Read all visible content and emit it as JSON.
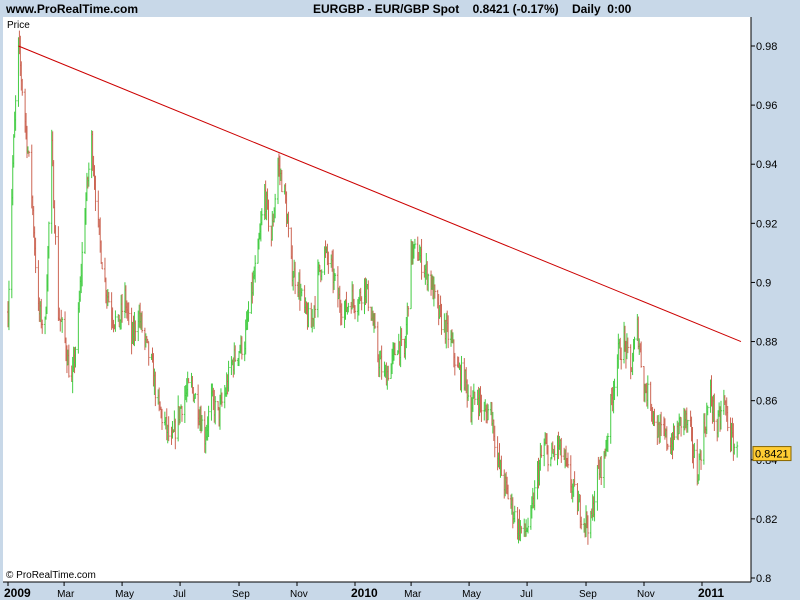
{
  "header": {
    "site": "www.ProRealTime.com",
    "title": "EURGBP - EUR/GBP Spot    0.8421 (-0.17%)    Daily  0:00"
  },
  "panel_label": "Price",
  "copyright": "© ProRealTime.com",
  "colors": {
    "background": "#c8d8e8",
    "plot": "#ffffff",
    "up": "#44cc44",
    "down": "#cc6655",
    "trendline": "#cc0000",
    "last_price_box": "#ffcc33"
  },
  "chart_data": {
    "type": "ohlc-bars",
    "symbol": "EURGBP",
    "timeframe": "Daily",
    "last_value": "0.8421",
    "ylim": [
      0.8,
      0.99
    ],
    "y_ticks": [
      "0.98",
      "0.96",
      "0.94",
      "0.92",
      "0.9",
      "0.88",
      "0.86",
      "0.84",
      "0.82",
      "0.8"
    ],
    "x_ticks": [
      "2009",
      "Mar",
      "May",
      "Jul",
      "Sep",
      "Nov",
      "2010",
      "Mar",
      "May",
      "Jul",
      "Sep",
      "Nov",
      "2011"
    ],
    "x_year_ticks": [
      "2009",
      "2010",
      "2011"
    ],
    "price_path": [
      [
        "2009-01-01",
        0.89
      ],
      [
        "2009-01-06",
        0.94
      ],
      [
        "2009-01-12",
        0.98
      ],
      [
        "2009-01-19",
        0.955
      ],
      [
        "2009-01-26",
        0.93
      ],
      [
        "2009-02-02",
        0.89
      ],
      [
        "2009-02-09",
        0.885
      ],
      [
        "2009-02-16",
        0.945
      ],
      [
        "2009-02-23",
        0.89
      ],
      [
        "2009-03-02",
        0.88
      ],
      [
        "2009-03-09",
        0.865
      ],
      [
        "2009-03-16",
        0.888
      ],
      [
        "2009-03-23",
        0.925
      ],
      [
        "2009-03-30",
        0.948
      ],
      [
        "2009-04-06",
        0.918
      ],
      [
        "2009-04-13",
        0.9
      ],
      [
        "2009-04-20",
        0.89
      ],
      [
        "2009-04-27",
        0.885
      ],
      [
        "2009-05-04",
        0.895
      ],
      [
        "2009-05-11",
        0.88
      ],
      [
        "2009-05-18",
        0.89
      ],
      [
        "2009-05-25",
        0.88
      ],
      [
        "2009-06-01",
        0.872
      ],
      [
        "2009-06-08",
        0.858
      ],
      [
        "2009-06-15",
        0.852
      ],
      [
        "2009-06-22",
        0.845
      ],
      [
        "2009-06-29",
        0.855
      ],
      [
        "2009-07-06",
        0.862
      ],
      [
        "2009-07-13",
        0.865
      ],
      [
        "2009-07-20",
        0.858
      ],
      [
        "2009-07-27",
        0.848
      ],
      [
        "2009-08-03",
        0.86
      ],
      [
        "2009-08-10",
        0.855
      ],
      [
        "2009-08-17",
        0.862
      ],
      [
        "2009-08-24",
        0.872
      ],
      [
        "2009-08-31",
        0.877
      ],
      [
        "2009-09-07",
        0.88
      ],
      [
        "2009-09-14",
        0.896
      ],
      [
        "2009-09-21",
        0.91
      ],
      [
        "2009-09-28",
        0.93
      ],
      [
        "2009-10-05",
        0.915
      ],
      [
        "2009-10-12",
        0.94
      ],
      [
        "2009-10-19",
        0.93
      ],
      [
        "2009-10-26",
        0.905
      ],
      [
        "2009-11-02",
        0.9
      ],
      [
        "2009-11-09",
        0.89
      ],
      [
        "2009-11-16",
        0.885
      ],
      [
        "2009-11-23",
        0.902
      ],
      [
        "2009-11-30",
        0.91
      ],
      [
        "2009-12-07",
        0.905
      ],
      [
        "2009-12-14",
        0.895
      ],
      [
        "2009-12-21",
        0.89
      ],
      [
        "2009-12-28",
        0.895
      ],
      [
        "2010-01-04",
        0.893
      ],
      [
        "2010-01-11",
        0.9
      ],
      [
        "2010-01-18",
        0.89
      ],
      [
        "2010-01-25",
        0.875
      ],
      [
        "2010-02-01",
        0.868
      ],
      [
        "2010-02-08",
        0.872
      ],
      [
        "2010-02-15",
        0.88
      ],
      [
        "2010-02-22",
        0.875
      ],
      [
        "2010-03-01",
        0.91
      ],
      [
        "2010-03-08",
        0.91
      ],
      [
        "2010-03-15",
        0.905
      ],
      [
        "2010-03-22",
        0.9
      ],
      [
        "2010-03-29",
        0.89
      ],
      [
        "2010-04-05",
        0.885
      ],
      [
        "2010-04-12",
        0.88
      ],
      [
        "2010-04-19",
        0.87
      ],
      [
        "2010-04-26",
        0.868
      ],
      [
        "2010-05-03",
        0.858
      ],
      [
        "2010-05-10",
        0.862
      ],
      [
        "2010-05-17",
        0.855
      ],
      [
        "2010-05-24",
        0.858
      ],
      [
        "2010-05-31",
        0.84
      ],
      [
        "2010-06-07",
        0.832
      ],
      [
        "2010-06-14",
        0.825
      ],
      [
        "2010-06-21",
        0.818
      ],
      [
        "2010-06-28",
        0.815
      ],
      [
        "2010-07-05",
        0.82
      ],
      [
        "2010-07-12",
        0.835
      ],
      [
        "2010-07-19",
        0.845
      ],
      [
        "2010-07-26",
        0.84
      ],
      [
        "2010-08-02",
        0.845
      ],
      [
        "2010-08-09",
        0.84
      ],
      [
        "2010-08-16",
        0.832
      ],
      [
        "2010-08-23",
        0.825
      ],
      [
        "2010-08-30",
        0.82
      ],
      [
        "2010-09-06",
        0.818
      ],
      [
        "2010-09-13",
        0.835
      ],
      [
        "2010-09-20",
        0.84
      ],
      [
        "2010-09-27",
        0.858
      ],
      [
        "2010-10-04",
        0.875
      ],
      [
        "2010-10-11",
        0.88
      ],
      [
        "2010-10-18",
        0.87
      ],
      [
        "2010-10-25",
        0.885
      ],
      [
        "2010-11-01",
        0.865
      ],
      [
        "2010-11-08",
        0.86
      ],
      [
        "2010-11-15",
        0.85
      ],
      [
        "2010-11-22",
        0.848
      ],
      [
        "2010-11-29",
        0.845
      ],
      [
        "2010-12-06",
        0.85
      ],
      [
        "2010-12-13",
        0.855
      ],
      [
        "2010-12-20",
        0.848
      ],
      [
        "2010-12-27",
        0.835
      ],
      [
        "2011-01-03",
        0.85
      ],
      [
        "2011-01-10",
        0.862
      ],
      [
        "2011-01-17",
        0.85
      ],
      [
        "2011-01-24",
        0.86
      ],
      [
        "2011-01-31",
        0.848
      ],
      [
        "2011-02-07",
        0.8421
      ]
    ],
    "trendline": {
      "start": [
        "2009-01-12",
        0.98
      ],
      "end": [
        "2011-02-11",
        0.88
      ]
    },
    "grid": false,
    "y_axis_position": "right"
  }
}
